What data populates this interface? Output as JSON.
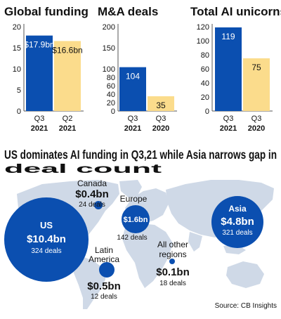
{
  "colors": {
    "blue": "#0b4fb0",
    "yellow": "#fbdc8c",
    "map_land": "#cfd9e7",
    "text": "#111111",
    "axis": "#555555"
  },
  "chart_data": [
    {
      "type": "bar",
      "title": "Global funding",
      "categories": [
        "Q3\n2021",
        "Q2\n2021"
      ],
      "values": [
        17.9,
        16.6
      ],
      "data_labels": [
        "$17.9bn",
        "$16.6bn"
      ],
      "ylim": [
        0,
        20
      ],
      "yticks": [
        0,
        5,
        10,
        15,
        20
      ]
    },
    {
      "type": "bar",
      "title": "M&A deals",
      "categories": [
        "Q3\n2021",
        "Q3\n2020"
      ],
      "values": [
        104,
        35
      ],
      "data_labels": [
        "104",
        "35"
      ],
      "ylim": [
        0,
        200
      ],
      "yticks": [
        0,
        20,
        40,
        60,
        80,
        100,
        150,
        200
      ]
    },
    {
      "type": "bar",
      "title": "Total AI unicorns",
      "categories": [
        "Q3\n2021",
        "Q3\n2020"
      ],
      "values": [
        119,
        75
      ],
      "data_labels": [
        "119",
        "75"
      ],
      "ylim": [
        0,
        120
      ],
      "yticks": [
        0,
        20,
        40,
        60,
        80,
        100,
        120
      ]
    }
  ],
  "map": {
    "headline": "US dominates AI funding in Q3,21 while Asia narrows gap in deal count",
    "regions": [
      {
        "name": "US",
        "amount": "$10.4bn",
        "deals": "324 deals",
        "funding_bn": 10.4,
        "deal_count": 324
      },
      {
        "name": "Canada",
        "amount": "$0.4bn",
        "deals": "24 deals",
        "funding_bn": 0.4,
        "deal_count": 24
      },
      {
        "name": "Europe",
        "amount": "$1.6bn",
        "deals": "142 deals",
        "funding_bn": 1.6,
        "deal_count": 142
      },
      {
        "name": "Asia",
        "amount": "$4.8bn",
        "deals": "321 deals",
        "funding_bn": 4.8,
        "deal_count": 321
      },
      {
        "name": "Latin America",
        "amount": "$0.5bn",
        "deals": "12 deals",
        "funding_bn": 0.5,
        "deal_count": 12
      },
      {
        "name": "All other regions",
        "amount": "$0.1bn",
        "deals": "18 deals",
        "funding_bn": 0.1,
        "deal_count": 18
      }
    ],
    "source": "Source: CB Insights"
  }
}
